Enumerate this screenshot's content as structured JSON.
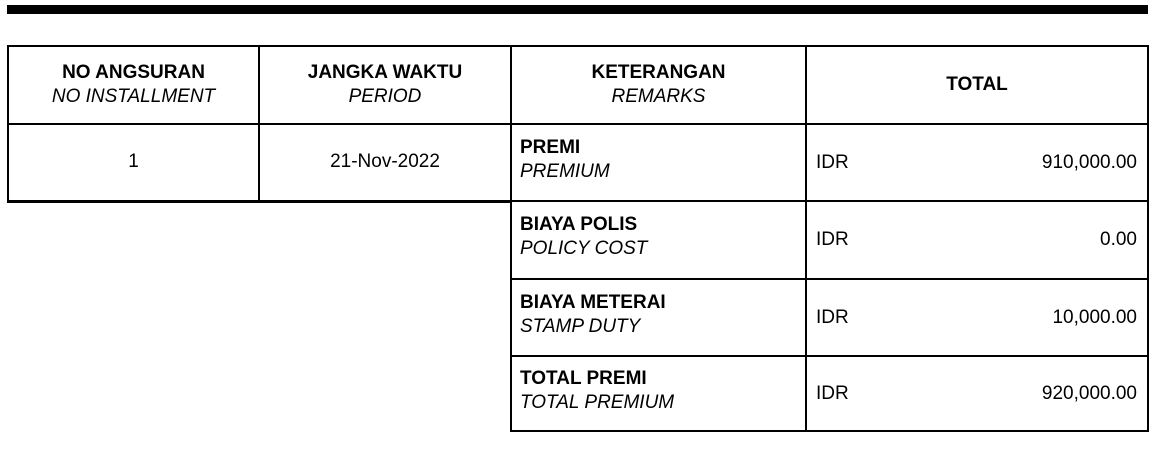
{
  "colors": {
    "text": "#000000",
    "border": "#000000",
    "background": "#ffffff",
    "top_rule": "#000000"
  },
  "table": {
    "headers": [
      {
        "line1": "NO ANGSURAN",
        "line2": "NO INSTALLMENT"
      },
      {
        "line1": "JANGKA WAKTU",
        "line2": "PERIOD"
      },
      {
        "line1": "KETERANGAN",
        "line2": "REMARKS"
      },
      {
        "line1": "TOTAL"
      }
    ],
    "installment": {
      "no": "1",
      "period": "21-Nov-2022"
    },
    "rows": [
      {
        "label": "PREMI",
        "label_en": "PREMIUM",
        "currency": "IDR",
        "amount": "910,000.00"
      },
      {
        "label": "BIAYA POLIS",
        "label_en": "POLICY COST",
        "currency": "IDR",
        "amount": "0.00"
      },
      {
        "label": "BIAYA METERAI",
        "label_en": "STAMP DUTY",
        "currency": "IDR",
        "amount": "10,000.00"
      },
      {
        "label": "TOTAL PREMI",
        "label_en": "TOTAL PREMIUM",
        "currency": "IDR",
        "amount": "920,000.00"
      }
    ]
  }
}
